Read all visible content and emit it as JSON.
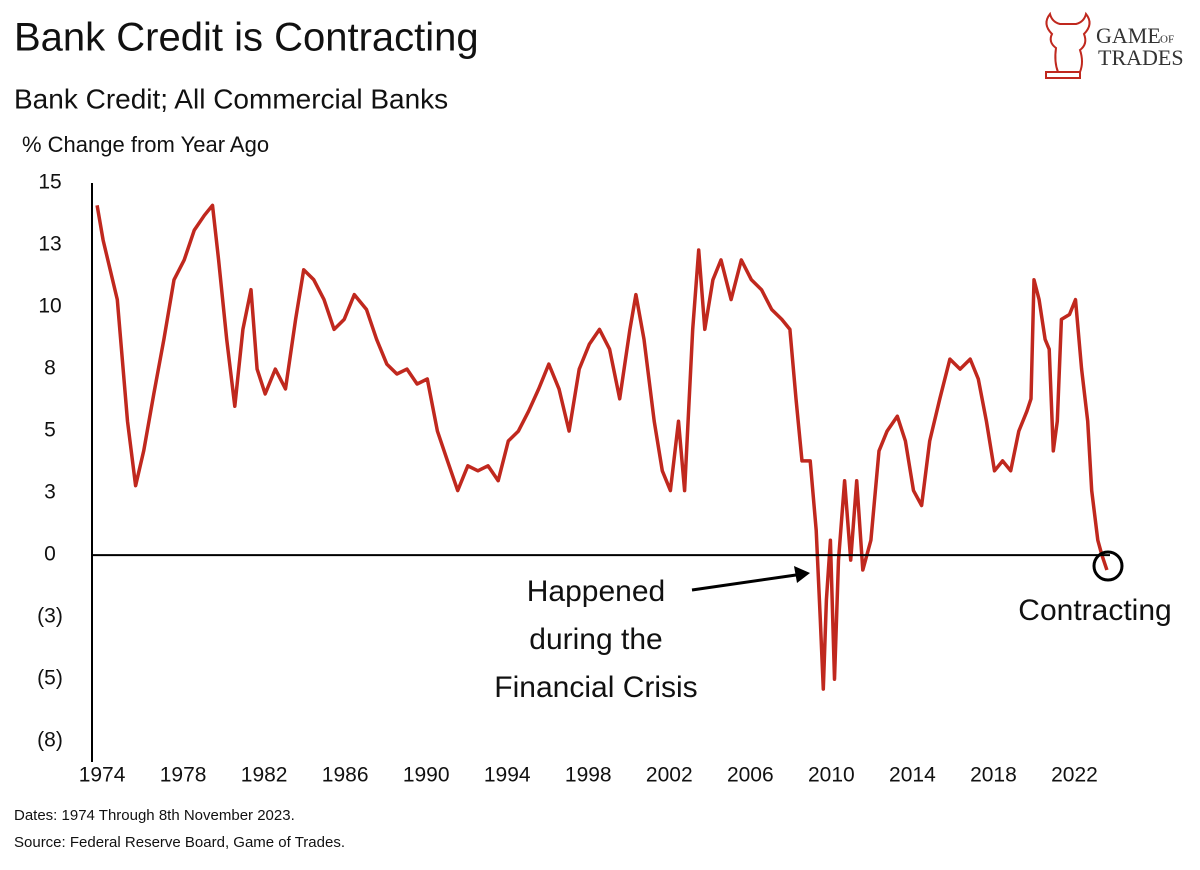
{
  "chart_data": {
    "type": "line",
    "title": "Bank Credit is Contracting",
    "subtitle": "Bank Credit; All Commercial Banks",
    "y_label": "% Change from Year Ago",
    "footnotes": [
      "Dates: 1974 Through 8th November 2023.",
      "Source: Federal Reserve Board, Game of Trades."
    ],
    "logo": {
      "word1": "GAME",
      "word2": "OF",
      "word3": "TRADES"
    },
    "annotations": [
      {
        "lines": [
          "Happened",
          "during the",
          "Financial Crisis"
        ]
      },
      {
        "text": "Contracting"
      }
    ],
    "xlim": [
      1973.75,
      2024.1
    ],
    "xticks": [
      1974,
      1978,
      1982,
      1986,
      1990,
      1994,
      1998,
      2002,
      2006,
      2010,
      2014,
      2018,
      2022
    ],
    "ylim": [
      -8,
      15
    ],
    "yticks": [
      15,
      {
        "value": 12.5,
        "label": "13"
      },
      10,
      {
        "value": 7.5,
        "label": "8"
      },
      5,
      {
        "value": 2.5,
        "label": "3"
      },
      0,
      {
        "value": -2.5,
        "label": "(3)"
      },
      {
        "value": -5,
        "label": "(5)"
      },
      {
        "value": -7.5,
        "label": "(8)"
      }
    ],
    "x": [
      1974.0,
      1974.3,
      1975.0,
      1975.5,
      1975.9,
      1976.3,
      1976.8,
      1977.3,
      1977.8,
      1978.3,
      1978.8,
      1979.3,
      1979.7,
      1980.0,
      1980.4,
      1980.8,
      1981.2,
      1981.6,
      1981.9,
      1982.3,
      1982.8,
      1983.3,
      1983.8,
      1984.2,
      1984.7,
      1985.2,
      1985.7,
      1986.2,
      1986.7,
      1987.3,
      1987.8,
      1988.3,
      1988.8,
      1989.3,
      1989.8,
      1990.3,
      1990.8,
      1991.3,
      1991.8,
      1992.3,
      1992.8,
      1993.3,
      1993.8,
      1994.3,
      1994.8,
      1995.3,
      1995.8,
      1996.3,
      1996.8,
      1997.3,
      1997.8,
      1998.3,
      1998.8,
      1999.3,
      1999.8,
      2000.3,
      2000.6,
      2001.0,
      2001.5,
      2001.9,
      2002.3,
      2002.7,
      2003.0,
      2003.4,
      2003.7,
      2004.0,
      2004.4,
      2004.8,
      2005.3,
      2005.8,
      2006.3,
      2006.8,
      2007.3,
      2007.8,
      2008.2,
      2008.5,
      2008.8,
      2009.2,
      2009.5,
      2009.7,
      2009.85,
      2010.0,
      2010.2,
      2010.4,
      2010.6,
      2010.9,
      2011.2,
      2011.5,
      2011.8,
      2012.2,
      2012.6,
      2013.0,
      2013.5,
      2013.9,
      2014.3,
      2014.7,
      2015.1,
      2015.6,
      2016.1,
      2016.6,
      2017.1,
      2017.5,
      2017.9,
      2018.3,
      2018.7,
      2019.1,
      2019.5,
      2019.9,
      2020.1,
      2020.25,
      2020.5,
      2020.8,
      2021.0,
      2021.2,
      2021.4,
      2021.6,
      2022.0,
      2022.3,
      2022.6,
      2022.9,
      2023.1,
      2023.4,
      2023.6,
      2023.85
    ],
    "series": [
      {
        "name": "Bank Credit",
        "color": "#c0281e",
        "values": [
          14.1,
          12.7,
          10.3,
          5.4,
          2.8,
          4.2,
          6.5,
          8.7,
          11.1,
          11.9,
          13.1,
          13.7,
          14.1,
          11.9,
          8.7,
          6.0,
          9.1,
          10.7,
          7.5,
          6.5,
          7.5,
          6.7,
          9.5,
          11.5,
          11.1,
          10.3,
          9.1,
          9.5,
          10.5,
          9.9,
          8.7,
          7.7,
          7.3,
          7.5,
          6.9,
          7.1,
          5.0,
          3.8,
          2.6,
          3.6,
          3.4,
          3.6,
          3.0,
          4.6,
          5.0,
          5.8,
          6.7,
          7.7,
          6.7,
          5.0,
          7.5,
          8.5,
          9.1,
          8.3,
          6.3,
          9.1,
          10.5,
          8.7,
          5.4,
          3.4,
          2.6,
          5.4,
          2.6,
          9.1,
          12.3,
          9.1,
          11.1,
          11.9,
          10.3,
          11.9,
          11.1,
          10.7,
          9.9,
          9.5,
          9.1,
          6.3,
          3.8,
          3.8,
          1.0,
          -2.6,
          -5.4,
          -1.8,
          0.6,
          -5.0,
          -0.2,
          3.0,
          -0.2,
          3.0,
          -0.6,
          0.6,
          4.2,
          5.0,
          5.6,
          4.6,
          2.6,
          2.0,
          4.6,
          6.3,
          7.9,
          7.5,
          7.9,
          7.1,
          5.4,
          3.4,
          3.8,
          3.4,
          5.0,
          5.8,
          6.3,
          11.1,
          10.3,
          8.7,
          8.3,
          4.2,
          5.4,
          9.5,
          9.7,
          10.3,
          7.5,
          5.4,
          2.6,
          0.6,
          0.0,
          -0.6
        ]
      }
    ]
  }
}
